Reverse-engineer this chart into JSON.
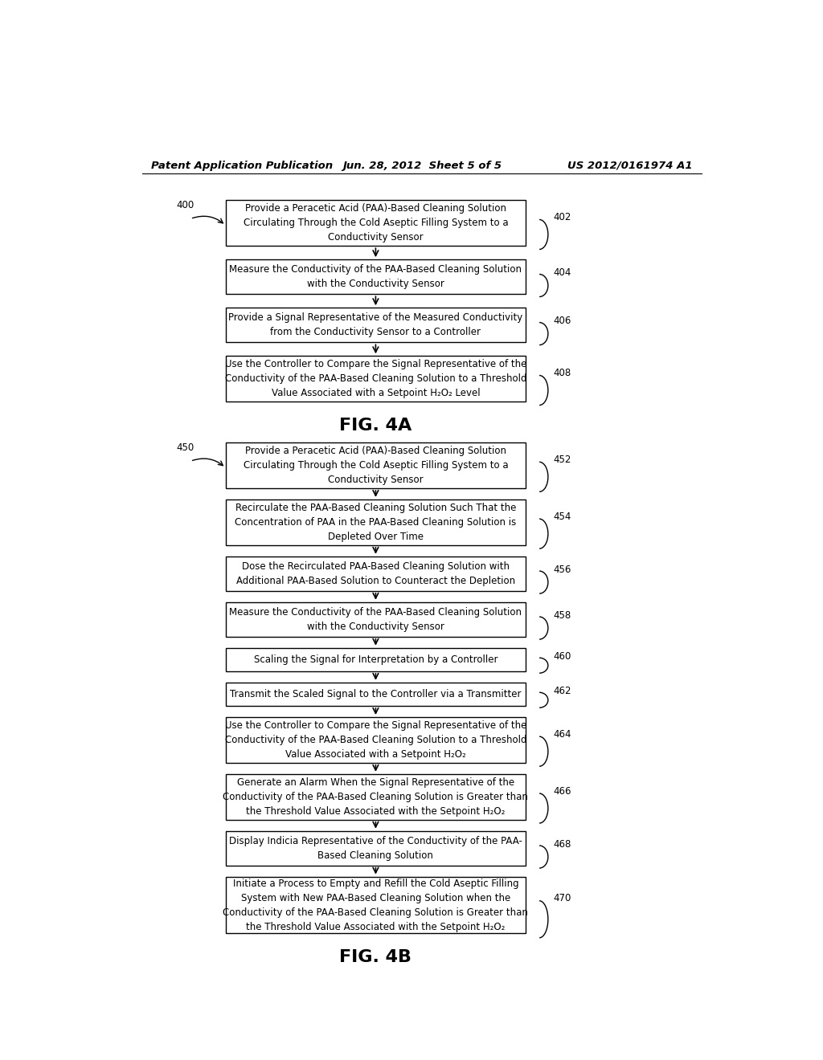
{
  "header_left": "Patent Application Publication",
  "header_center": "Jun. 28, 2012  Sheet 5 of 5",
  "header_right": "US 2012/0161974 A1",
  "fig4a_label": "400",
  "fig4a_caption": "FIG. 4A",
  "fig4b_label": "450",
  "fig4b_caption": "FIG. 4B",
  "fig4a_boxes": [
    {
      "id": "402",
      "text": "Provide a Peracetic Acid (PAA)-Based Cleaning Solution\nCirculating Through the Cold Aseptic Filling System to a\nConductivity Sensor",
      "lines": 3
    },
    {
      "id": "404",
      "text": "Measure the Conductivity of the PAA-Based Cleaning Solution\nwith the Conductivity Sensor",
      "lines": 2
    },
    {
      "id": "406",
      "text": "Provide a Signal Representative of the Measured Conductivity\nfrom the Conductivity Sensor to a Controller",
      "lines": 2
    },
    {
      "id": "408",
      "text": "Use the Controller to Compare the Signal Representative of the\nConductivity of the PAA-Based Cleaning Solution to a Threshold\nValue Associated with a Setpoint H₂O₂ Level",
      "lines": 3
    }
  ],
  "fig4b_boxes": [
    {
      "id": "452",
      "text": "Provide a Peracetic Acid (PAA)-Based Cleaning Solution\nCirculating Through the Cold Aseptic Filling System to a\nConductivity Sensor",
      "lines": 3
    },
    {
      "id": "454",
      "text": "Recirculate the PAA-Based Cleaning Solution Such That the\nConcentration of PAA in the PAA-Based Cleaning Solution is\nDepleted Over Time",
      "lines": 3
    },
    {
      "id": "456",
      "text": "Dose the Recirculated PAA-Based Cleaning Solution with\nAdditional PAA-Based Solution to Counteract the Depletion",
      "lines": 2
    },
    {
      "id": "458",
      "text": "Measure the Conductivity of the PAA-Based Cleaning Solution\nwith the Conductivity Sensor",
      "lines": 2
    },
    {
      "id": "460",
      "text": "Scaling the Signal for Interpretation by a Controller",
      "lines": 1
    },
    {
      "id": "462",
      "text": "Transmit the Scaled Signal to the Controller via a Transmitter",
      "lines": 1
    },
    {
      "id": "464",
      "text": "Use the Controller to Compare the Signal Representative of the\nConductivity of the PAA-Based Cleaning Solution to a Threshold\nValue Associated with a Setpoint H₂O₂",
      "lines": 3
    },
    {
      "id": "466",
      "text": "Generate an Alarm When the Signal Representative of the\nConductivity of the PAA-Based Cleaning Solution is Greater than\nthe Threshold Value Associated with the Setpoint H₂O₂",
      "lines": 3
    },
    {
      "id": "468",
      "text": "Display Indicia Representative of the Conductivity of the PAA-\nBased Cleaning Solution",
      "lines": 2
    },
    {
      "id": "470",
      "text": "Initiate a Process to Empty and Refill the Cold Aseptic Filling\nSystem with New PAA-Based Cleaning Solution when the\nConductivity of the PAA-Based Cleaning Solution is Greater than\nthe Threshold Value Associated with the Setpoint H₂O₂",
      "lines": 4
    }
  ],
  "bg_color": "#ffffff",
  "box_facecolor": "#ffffff",
  "box_edgecolor": "#000000",
  "text_color": "#000000"
}
